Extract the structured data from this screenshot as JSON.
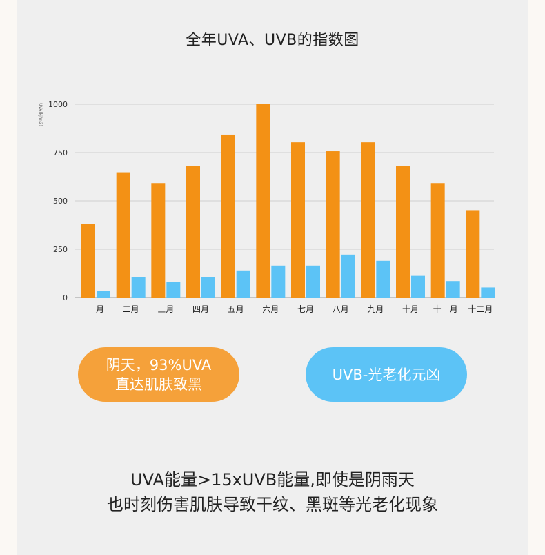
{
  "title": "全年UVA、UVB的指数图",
  "chart_data": {
    "type": "bar",
    "ylabel": "UVA(kj/m2)",
    "ylim": [
      0,
      1000
    ],
    "yticks": [
      0,
      250,
      500,
      750,
      1000
    ],
    "grid": true,
    "categories": [
      "一月",
      "二月",
      "三月",
      "四月",
      "五月",
      "六月",
      "七月",
      "八月",
      "九月",
      "十月",
      "十一月",
      "十二月"
    ],
    "series": [
      {
        "color": "#f39115",
        "values": [
          380,
          648,
          592,
          680,
          843,
          1000,
          803,
          757,
          803,
          680,
          592,
          452
        ]
      },
      {
        "color": "#5cc3f6",
        "values": [
          33,
          105,
          82,
          105,
          140,
          165,
          165,
          222,
          190,
          112,
          85,
          52
        ]
      }
    ]
  },
  "pills": {
    "uva_line1": "阴天，93%UVA",
    "uva_line2": "直达肌肤致黑",
    "uvb": "UVB-光老化元凶"
  },
  "colors": {
    "uva": "#f5a13a",
    "uvb": "#5cc3f6"
  },
  "caption": {
    "line1": "UVA能量>15xUVB能量,即使是阴雨天",
    "line2": "也时刻伤害肌肤导致干纹、黑斑等光老化现象"
  }
}
